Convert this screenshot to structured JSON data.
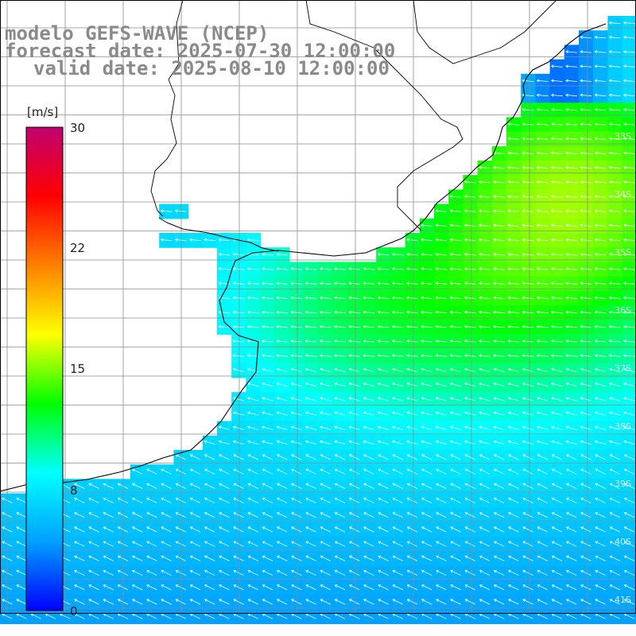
{
  "header": {
    "model_line": "modelo GEFS-WAVE (NCEP)",
    "forecast_line": "forecast date: 2025-07-30 12:00:00",
    "valid_line": "valid date: 2025-08-10 12:00:00"
  },
  "colorbar": {
    "unit": "[m/s]",
    "ticks": [
      "30",
      "22",
      "15",
      "8",
      "0"
    ],
    "tick_values": [
      30,
      22,
      15,
      8,
      0
    ],
    "range": [
      0,
      30
    ],
    "colors": [
      "#0000ff",
      "#00a0ff",
      "#00ffff",
      "#00ff00",
      "#ffff00",
      "#ff8000",
      "#ff0000",
      "#c00070"
    ]
  },
  "map": {
    "lat_labels": [
      "33S",
      "34S",
      "35S",
      "36S",
      "37S",
      "38S",
      "39S",
      "40S",
      "41S"
    ],
    "wind_direction": "from east / northeast",
    "land_color": "#ffffff",
    "grid_color": "#8c8c8c",
    "coast_color": "#000000",
    "arrow_color": "#ffffff"
  }
}
